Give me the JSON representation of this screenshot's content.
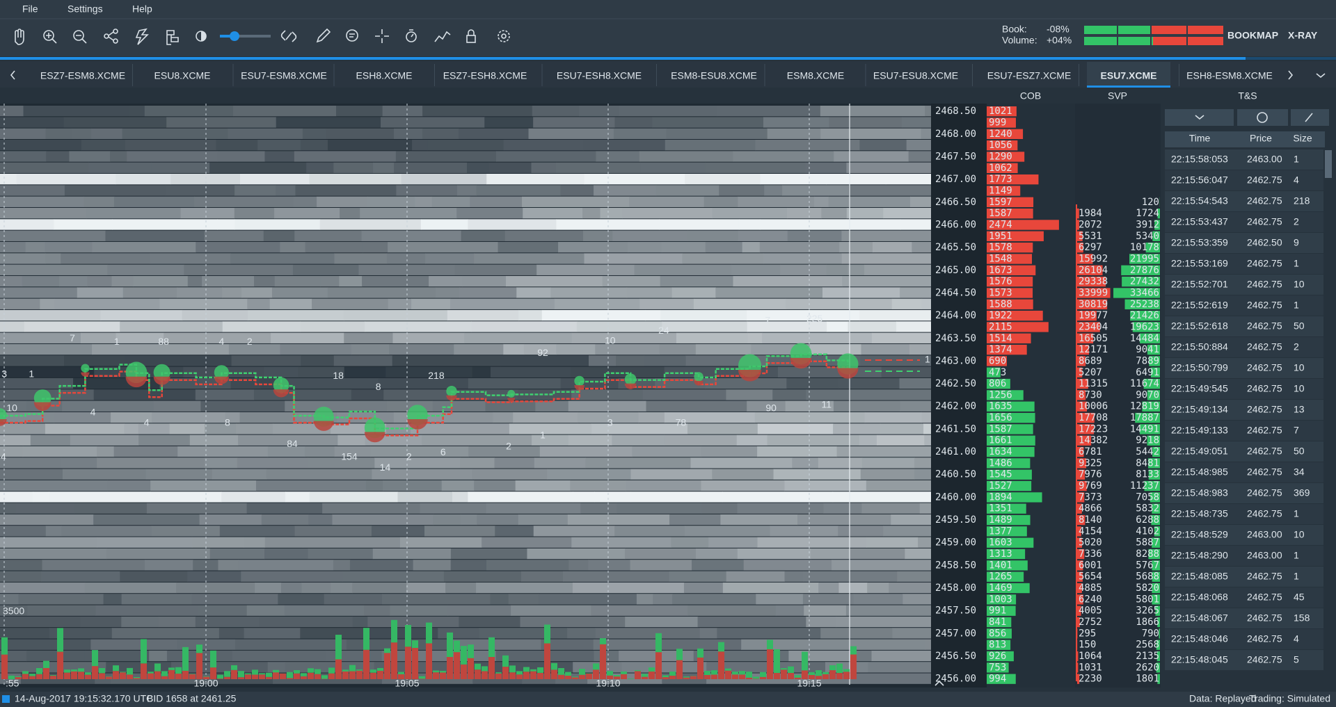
{
  "menu": [
    "File",
    "Settings",
    "Help"
  ],
  "header": {
    "book_label": "Book:",
    "book_value": "-08%",
    "volume_label": "Volume:",
    "volume_value": "+04%",
    "brand": "BOOKMAP",
    "brand_suffix": "X-RAY"
  },
  "tabs": {
    "items": [
      "ESZ7-ESM8.XCME",
      "ESU8.XCME",
      "ESU7-ESM8.XCME",
      "ESH8.XCME",
      "ESZ7-ESH8.XCME",
      "ESU7-ESH8.XCME",
      "ESM8-ESU8.XCME",
      "ESM8.XCME",
      "ESU7-ESU8.XCME",
      "ESU7-ESZ7.XCME",
      "ESU7.XCME",
      "ESH8-ESM8.XCME"
    ],
    "active": 10
  },
  "panels": {
    "cob": "COB",
    "svp": "SVP",
    "ts": "T&S"
  },
  "chart": {
    "time_labels": [
      ":55",
      "19:00",
      "19:05",
      "19:10",
      "19:15"
    ],
    "volume_scale": "3500",
    "position_marker": "1",
    "annotations_above": [
      "3",
      "1",
      "10",
      "7",
      "1",
      "88",
      "4",
      "2",
      "18",
      "8",
      "218",
      "92",
      "10",
      "24",
      "7",
      "225"
    ],
    "annotations_below": [
      "4",
      "4",
      "4",
      "8",
      "84",
      "154",
      "14",
      "2",
      "6",
      "2",
      "1",
      "3",
      "78",
      "90",
      "11"
    ]
  },
  "ladder": {
    "price_labels": [
      "2468.50",
      "2468.00",
      "2467.50",
      "2467.00",
      "2466.50",
      "2466.00",
      "2465.50",
      "2465.00",
      "2464.50",
      "2464.00",
      "2463.50",
      "2463.00",
      "2462.50",
      "2462.00",
      "2461.50",
      "2461.00",
      "2460.50",
      "2460.00",
      "2459.50",
      "2459.00",
      "2458.50",
      "2458.00",
      "2457.50",
      "2457.00",
      "2456.50",
      "2456.00"
    ],
    "cob_asks": [
      1021,
      999,
      1240,
      1056,
      1290,
      1062,
      1773,
      1149,
      1597,
      1587,
      2474,
      1951,
      1578,
      1548,
      1673,
      1576,
      1573,
      1588,
      1922,
      2115,
      1514,
      1374,
      690
    ],
    "cob_bids": [
      473,
      806,
      1256,
      1635,
      1656,
      1587,
      1661,
      1634,
      1486,
      1545,
      1527,
      1894,
      1351,
      1489,
      1377,
      1603,
      1313,
      1401,
      1265,
      1469,
      1003,
      991,
      841,
      856,
      813,
      926,
      753,
      994
    ],
    "svp": [
      [
        null,
        null
      ],
      [
        null,
        null
      ],
      [
        null,
        null
      ],
      [
        null,
        null
      ],
      [
        null,
        null
      ],
      [
        null,
        null
      ],
      [
        null,
        null
      ],
      [
        null,
        null
      ],
      [
        null,
        120
      ],
      [
        1984,
        1724
      ],
      [
        2072,
        3912
      ],
      [
        5531,
        5340
      ],
      [
        6297,
        10178
      ],
      [
        15992,
        21995
      ],
      [
        26104,
        27876
      ],
      [
        29338,
        27432
      ],
      [
        33999,
        33466
      ],
      [
        30819,
        25238
      ],
      [
        19977,
        21426
      ],
      [
        23404,
        19623
      ],
      [
        16505,
        14484
      ],
      [
        12171,
        9041
      ],
      [
        8689,
        7889
      ],
      [
        5207,
        6491
      ],
      [
        11315,
        11674
      ],
      [
        8730,
        9070
      ],
      [
        10006,
        12819
      ],
      [
        17708,
        17887
      ],
      [
        17223,
        14491
      ],
      [
        14382,
        9218
      ],
      [
        6781,
        5442
      ],
      [
        9325,
        8481
      ],
      [
        7976,
        8133
      ],
      [
        9769,
        11237
      ],
      [
        7373,
        7058
      ],
      [
        4866,
        5832
      ],
      [
        8140,
        6288
      ],
      [
        4154,
        4102
      ],
      [
        5020,
        5887
      ],
      [
        7336,
        8288
      ],
      [
        6001,
        5767
      ],
      [
        5654,
        5688
      ],
      [
        4885,
        5820
      ],
      [
        6240,
        5801
      ],
      [
        4005,
        3265
      ],
      [
        2752,
        1866
      ],
      [
        295,
        790
      ],
      [
        150,
        2568
      ],
      [
        1064,
        2135
      ],
      [
        1031,
        2620
      ],
      [
        2230,
        1801
      ]
    ]
  },
  "ts": {
    "columns": [
      "Time",
      "Price",
      "Size"
    ],
    "rows": [
      {
        "time": "22:15:58:053",
        "price": "2463.00",
        "size": "1",
        "side": "buy"
      },
      {
        "time": "22:15:56:047",
        "price": "2462.75",
        "size": "4",
        "side": "sell"
      },
      {
        "time": "22:15:54:543",
        "price": "2462.75",
        "size": "218",
        "side": "buy"
      },
      {
        "time": "22:15:53:437",
        "price": "2462.75",
        "size": "2",
        "side": "buy"
      },
      {
        "time": "22:15:53:359",
        "price": "2462.50",
        "size": "9",
        "side": "sell"
      },
      {
        "time": "22:15:53:169",
        "price": "2462.75",
        "size": "1",
        "side": "buy"
      },
      {
        "time": "22:15:52:701",
        "price": "2462.75",
        "size": "10",
        "side": "buy"
      },
      {
        "time": "22:15:52:619",
        "price": "2462.75",
        "size": "1",
        "side": "buy"
      },
      {
        "time": "22:15:52:618",
        "price": "2462.75",
        "size": "50",
        "side": "buy"
      },
      {
        "time": "22:15:50:884",
        "price": "2462.75",
        "size": "2",
        "side": "buy"
      },
      {
        "time": "22:15:50:799",
        "price": "2462.75",
        "size": "10",
        "side": "buy"
      },
      {
        "time": "22:15:49:545",
        "price": "2462.75",
        "size": "10",
        "side": "buy"
      },
      {
        "time": "22:15:49:134",
        "price": "2462.75",
        "size": "13",
        "side": "buy"
      },
      {
        "time": "22:15:49:133",
        "price": "2462.75",
        "size": "7",
        "side": "buy"
      },
      {
        "time": "22:15:49:051",
        "price": "2462.75",
        "size": "50",
        "side": "buy"
      },
      {
        "time": "22:15:48:985",
        "price": "2462.75",
        "size": "34",
        "side": "buy"
      },
      {
        "time": "22:15:48:983",
        "price": "2462.75",
        "size": "369",
        "side": "sell"
      },
      {
        "time": "22:15:48:735",
        "price": "2462.75",
        "size": "1",
        "side": "sell"
      },
      {
        "time": "22:15:48:529",
        "price": "2463.00",
        "size": "10",
        "side": "buy"
      },
      {
        "time": "22:15:48:290",
        "price": "2463.00",
        "size": "1",
        "side": "buy"
      },
      {
        "time": "22:15:48:085",
        "price": "2462.75",
        "size": "1",
        "side": "sell"
      },
      {
        "time": "22:15:48:068",
        "price": "2462.75",
        "size": "45",
        "side": "buy"
      },
      {
        "time": "22:15:48:067",
        "price": "2462.75",
        "size": "158",
        "side": "buy"
      },
      {
        "time": "22:15:48:046",
        "price": "2462.75",
        "size": "4",
        "side": "buy"
      },
      {
        "time": "22:15:48:045",
        "price": "2462.75",
        "size": "5",
        "side": "buy"
      }
    ]
  },
  "status": {
    "timestamp": "14-Aug-2017 19:15:32.170 UTC",
    "bid": "BID 1658 at 2461.25",
    "data_mode": "Data: Replayed",
    "trading_mode": "Trading: Simulated"
  }
}
